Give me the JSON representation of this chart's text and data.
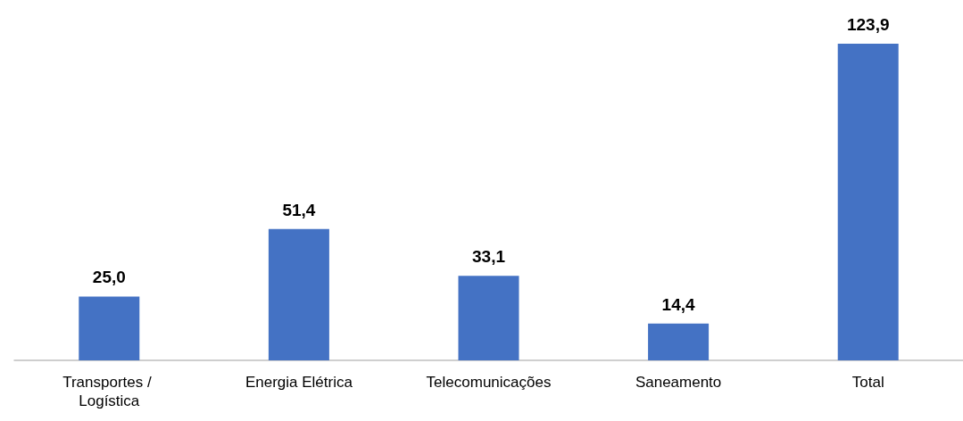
{
  "chart_data": {
    "type": "bar",
    "categories": [
      "Transportes / Logística",
      "Energia Elétrica",
      "Telecomunicações",
      "Saneamento",
      "Total"
    ],
    "values": [
      25.0,
      51.4,
      33.1,
      14.4,
      123.9
    ],
    "value_labels": [
      "25,0",
      "51,4",
      "33,1",
      "14,4",
      "123,9"
    ],
    "color": "#4472c4"
  }
}
